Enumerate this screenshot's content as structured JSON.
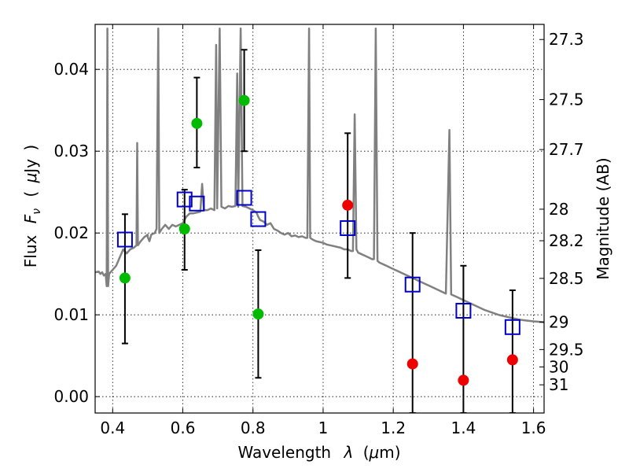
{
  "chart_data": {
    "type": "scatter",
    "x_label_parts": [
      "Wavelength",
      "λ",
      "(",
      "μ",
      "m)"
    ],
    "y_label_parts": [
      "Flux",
      "F",
      "ν",
      "(",
      "μ",
      "Jy",
      ")"
    ],
    "y2_label": "Magnitude (AB)",
    "xlim": [
      0.35,
      1.63
    ],
    "ylim": [
      -0.002,
      0.0455
    ],
    "x_ticks": [
      {
        "value": 0.4,
        "label": "0.4"
      },
      {
        "value": 0.6,
        "label": "0.6"
      },
      {
        "value": 0.8,
        "label": "0.8"
      },
      {
        "value": 1.0,
        "label": "1"
      },
      {
        "value": 1.2,
        "label": "1.2"
      },
      {
        "value": 1.4,
        "label": "1.4"
      },
      {
        "value": 1.6,
        "label": "1.6"
      }
    ],
    "y_ticks": [
      {
        "value": 0.0,
        "label": "0.00"
      },
      {
        "value": 0.01,
        "label": "0.01"
      },
      {
        "value": 0.02,
        "label": "0.02"
      },
      {
        "value": 0.03,
        "label": "0.03"
      },
      {
        "value": 0.04,
        "label": "0.04"
      }
    ],
    "y2_ticks": [
      {
        "value": 27.3,
        "label": "27.3"
      },
      {
        "value": 27.5,
        "label": "27.5"
      },
      {
        "value": 27.7,
        "label": "27.7"
      },
      {
        "value": 28,
        "label": "28"
      },
      {
        "value": 28.2,
        "label": "28.2"
      },
      {
        "value": 28.5,
        "label": "28.5"
      },
      {
        "value": 29,
        "label": "29"
      },
      {
        "value": 29.5,
        "label": "29.5"
      },
      {
        "value": 30,
        "label": "30"
      },
      {
        "value": 31,
        "label": "31"
      }
    ],
    "grid": true,
    "colors": {
      "template": "#808080",
      "model": "#0000cc",
      "detections": "#00bb00",
      "faint": "#ee0000",
      "errorbar": "#000000"
    },
    "template_spectrum": [
      [
        0.35,
        0.0152
      ],
      [
        0.36,
        0.0153
      ],
      [
        0.365,
        0.015
      ],
      [
        0.37,
        0.0152
      ],
      [
        0.375,
        0.0148
      ],
      [
        0.38,
        0.015
      ],
      [
        0.383,
        0.0135
      ],
      [
        0.385,
        0.045
      ],
      [
        0.387,
        0.0135
      ],
      [
        0.39,
        0.015
      ],
      [
        0.41,
        0.016
      ],
      [
        0.42,
        0.017
      ],
      [
        0.43,
        0.018
      ],
      [
        0.44,
        0.0175
      ],
      [
        0.45,
        0.018
      ],
      [
        0.46,
        0.0182
      ],
      [
        0.468,
        0.0185
      ],
      [
        0.47,
        0.031
      ],
      [
        0.472,
        0.0185
      ],
      [
        0.48,
        0.019
      ],
      [
        0.49,
        0.0195
      ],
      [
        0.5,
        0.0198
      ],
      [
        0.5,
        0.0195
      ],
      [
        0.505,
        0.019
      ],
      [
        0.51,
        0.0198
      ],
      [
        0.52,
        0.02
      ],
      [
        0.525,
        0.0205
      ],
      [
        0.53,
        0.045
      ],
      [
        0.533,
        0.02
      ],
      [
        0.54,
        0.0205
      ],
      [
        0.55,
        0.021
      ],
      [
        0.56,
        0.0205
      ],
      [
        0.57,
        0.021
      ],
      [
        0.58,
        0.0208
      ],
      [
        0.59,
        0.021
      ],
      [
        0.6,
        0.0212
      ],
      [
        0.61,
        0.022
      ],
      [
        0.62,
        0.0224
      ],
      [
        0.63,
        0.0224
      ],
      [
        0.64,
        0.0225
      ],
      [
        0.65,
        0.0226
      ],
      [
        0.655,
        0.026
      ],
      [
        0.66,
        0.0228
      ],
      [
        0.67,
        0.0228
      ],
      [
        0.68,
        0.023
      ],
      [
        0.69,
        0.0228
      ],
      [
        0.695,
        0.043
      ],
      [
        0.698,
        0.023
      ],
      [
        0.705,
        0.045
      ],
      [
        0.71,
        0.0232
      ],
      [
        0.72,
        0.023
      ],
      [
        0.73,
        0.0233
      ],
      [
        0.74,
        0.0232
      ],
      [
        0.75,
        0.0233
      ],
      [
        0.755,
        0.0395
      ],
      [
        0.758,
        0.0232
      ],
      [
        0.765,
        0.045
      ],
      [
        0.77,
        0.0233
      ],
      [
        0.78,
        0.0232
      ],
      [
        0.79,
        0.023
      ],
      [
        0.8,
        0.0228
      ],
      [
        0.81,
        0.0225
      ],
      [
        0.815,
        0.022
      ],
      [
        0.82,
        0.0216
      ],
      [
        0.83,
        0.0214
      ],
      [
        0.84,
        0.021
      ],
      [
        0.85,
        0.0212
      ],
      [
        0.86,
        0.0205
      ],
      [
        0.87,
        0.0203
      ],
      [
        0.88,
        0.02
      ],
      [
        0.89,
        0.0198
      ],
      [
        0.9,
        0.02
      ],
      [
        0.91,
        0.0196
      ],
      [
        0.92,
        0.0197
      ],
      [
        0.93,
        0.0195
      ],
      [
        0.94,
        0.0196
      ],
      [
        0.95,
        0.0194
      ],
      [
        0.955,
        0.0194
      ],
      [
        0.96,
        0.045
      ],
      [
        0.963,
        0.0194
      ],
      [
        0.97,
        0.0192
      ],
      [
        0.98,
        0.019
      ],
      [
        0.99,
        0.0189
      ],
      [
        1.0,
        0.0188
      ],
      [
        1.01,
        0.0186
      ],
      [
        1.02,
        0.0185
      ],
      [
        1.03,
        0.0184
      ],
      [
        1.04,
        0.0183
      ],
      [
        1.05,
        0.0182
      ],
      [
        1.06,
        0.018
      ],
      [
        1.07,
        0.018
      ],
      [
        1.08,
        0.0178
      ],
      [
        1.085,
        0.0178
      ],
      [
        1.09,
        0.0345
      ],
      [
        1.095,
        0.018
      ],
      [
        1.1,
        0.0176
      ],
      [
        1.11,
        0.0174
      ],
      [
        1.12,
        0.0172
      ],
      [
        1.13,
        0.017
      ],
      [
        1.14,
        0.0168
      ],
      [
        1.145,
        0.0168
      ],
      [
        1.15,
        0.045
      ],
      [
        1.155,
        0.0166
      ],
      [
        1.16,
        0.0164
      ],
      [
        1.18,
        0.016
      ],
      [
        1.2,
        0.0156
      ],
      [
        1.22,
        0.0152
      ],
      [
        1.24,
        0.0148
      ],
      [
        1.26,
        0.0144
      ],
      [
        1.28,
        0.014
      ],
      [
        1.3,
        0.0136
      ],
      [
        1.32,
        0.0132
      ],
      [
        1.34,
        0.0128
      ],
      [
        1.35,
        0.0126
      ],
      [
        1.36,
        0.0326
      ],
      [
        1.365,
        0.0125
      ],
      [
        1.38,
        0.0122
      ],
      [
        1.4,
        0.0118
      ],
      [
        1.42,
        0.0114
      ],
      [
        1.44,
        0.011
      ],
      [
        1.46,
        0.0106
      ],
      [
        1.48,
        0.0103
      ],
      [
        1.5,
        0.01
      ],
      [
        1.52,
        0.0098
      ],
      [
        1.54,
        0.0096
      ],
      [
        1.56,
        0.0094
      ],
      [
        1.58,
        0.0093
      ],
      [
        1.6,
        0.0092
      ],
      [
        1.63,
        0.0091
      ]
    ],
    "model_points": [
      {
        "x": 0.435,
        "y": 0.0192
      },
      {
        "x": 0.605,
        "y": 0.0241
      },
      {
        "x": 0.64,
        "y": 0.0236
      },
      {
        "x": 0.775,
        "y": 0.0243
      },
      {
        "x": 0.815,
        "y": 0.0217
      },
      {
        "x": 1.07,
        "y": 0.0206
      },
      {
        "x": 1.255,
        "y": 0.0137
      },
      {
        "x": 1.4,
        "y": 0.0105
      },
      {
        "x": 1.54,
        "y": 0.0085
      }
    ],
    "detections": [
      {
        "x": 0.435,
        "y": 0.0145,
        "err_low": 0.0065,
        "err_high": 0.0223
      },
      {
        "x": 0.605,
        "y": 0.0205,
        "err_low": 0.0155,
        "err_high": 0.0253
      },
      {
        "x": 0.64,
        "y": 0.0334,
        "err_low": 0.028,
        "err_high": 0.039
      },
      {
        "x": 0.775,
        "y": 0.0362,
        "err_low": 0.03,
        "err_high": 0.0424
      },
      {
        "x": 0.815,
        "y": 0.0101,
        "err_low": 0.0023,
        "err_high": 0.0179
      }
    ],
    "faint_points": [
      {
        "x": 1.07,
        "y": 0.0234,
        "err_low": 0.0145,
        "err_high": 0.0322
      },
      {
        "x": 1.255,
        "y": 0.004,
        "err_low": -0.002,
        "err_high": 0.02
      },
      {
        "x": 1.4,
        "y": 0.002,
        "err_low": -0.002,
        "err_high": 0.016
      },
      {
        "x": 1.54,
        "y": 0.0045,
        "err_low": -0.002,
        "err_high": 0.013
      }
    ]
  }
}
